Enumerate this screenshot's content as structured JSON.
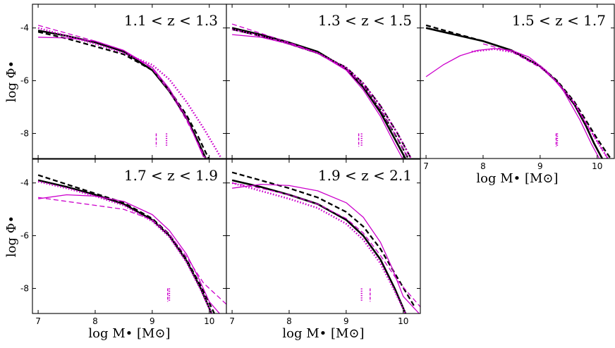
{
  "chart_data": {
    "type": "line",
    "axis": {
      "ylabel": "log Φ•",
      "xlabel": "log M• [M⊙]",
      "xlim": [
        6.9,
        10.3
      ],
      "ylim": [
        -8.95,
        -3.1
      ],
      "xticks": [
        7,
        8,
        9,
        10
      ],
      "yticks": [
        -4,
        -6,
        -8
      ]
    },
    "colors": {
      "black": "#000000",
      "magenta": "#cc00cc"
    },
    "panels": [
      {
        "id": "p1",
        "label": "1.1 < z < 1.3",
        "row": 0,
        "col": 0,
        "show_xlabel": false,
        "show_ylabel": true,
        "show_xticklabels": false,
        "show_yticklabels": true,
        "series": [
          {
            "color": "black",
            "style": "solid",
            "x": [
              7.0,
              7.5,
              8.0,
              8.5,
              9.0,
              9.3,
              9.6,
              9.8,
              9.95
            ],
            "y": [
              -4.1,
              -4.3,
              -4.55,
              -4.9,
              -5.6,
              -6.4,
              -7.4,
              -8.3,
              -9.0
            ]
          },
          {
            "color": "black",
            "style": "dashed",
            "x": [
              7.0,
              7.5,
              8.0,
              8.5,
              9.0,
              9.3,
              9.6,
              9.8,
              10.0
            ],
            "y": [
              -4.15,
              -4.4,
              -4.7,
              -5.0,
              -5.6,
              -6.35,
              -7.3,
              -8.1,
              -9.0
            ]
          },
          {
            "color": "magenta",
            "style": "solid",
            "x": [
              7.0,
              7.5,
              8.0,
              8.5,
              9.0,
              9.3,
              9.6,
              9.9
            ],
            "y": [
              -4.35,
              -4.38,
              -4.5,
              -4.85,
              -5.5,
              -6.3,
              -7.4,
              -8.9
            ]
          },
          {
            "color": "magenta",
            "style": "dashed",
            "x": [
              7.0,
              7.5,
              8.0,
              8.5,
              9.0,
              9.3,
              9.6,
              9.95
            ],
            "y": [
              -3.9,
              -4.2,
              -4.5,
              -4.85,
              -5.55,
              -6.4,
              -7.5,
              -9.0
            ]
          },
          {
            "color": "magenta",
            "style": "dotted",
            "x": [
              7.0,
              7.5,
              8.0,
              8.5,
              9.0,
              9.3,
              9.6,
              9.9,
              10.2
            ],
            "y": [
              -4.0,
              -4.3,
              -4.6,
              -4.95,
              -5.4,
              -5.95,
              -6.8,
              -7.8,
              -8.9
            ]
          }
        ],
        "markers": [
          {
            "x": 9.07,
            "style": "dashed",
            "color": "magenta"
          },
          {
            "x": 9.25,
            "style": "dotted",
            "color": "magenta"
          }
        ]
      },
      {
        "id": "p2",
        "label": "1.3 < z < 1.5",
        "row": 0,
        "col": 1,
        "show_xlabel": false,
        "show_ylabel": false,
        "show_xticklabels": false,
        "show_yticklabels": false,
        "series": [
          {
            "color": "black",
            "style": "solid",
            "x": [
              7.0,
              7.5,
              8.0,
              8.5,
              9.0,
              9.3,
              9.6,
              9.85,
              10.05
            ],
            "y": [
              -4.0,
              -4.25,
              -4.55,
              -4.9,
              -5.55,
              -6.25,
              -7.2,
              -8.2,
              -9.0
            ]
          },
          {
            "color": "black",
            "style": "dashed",
            "x": [
              7.0,
              7.5,
              8.0,
              8.5,
              9.0,
              9.3,
              9.6,
              9.9,
              10.1
            ],
            "y": [
              -4.05,
              -4.3,
              -4.6,
              -4.95,
              -5.55,
              -6.2,
              -7.1,
              -8.2,
              -9.0
            ]
          },
          {
            "color": "black",
            "style": "dashdot",
            "x": [
              7.0,
              7.5,
              8.0,
              8.5,
              9.0,
              9.3,
              9.6,
              9.9,
              10.15
            ],
            "y": [
              -4.05,
              -4.3,
              -4.6,
              -4.95,
              -5.5,
              -6.1,
              -6.95,
              -8.0,
              -9.0
            ]
          },
          {
            "color": "magenta",
            "style": "solid",
            "x": [
              7.0,
              7.5,
              8.0,
              8.5,
              9.0,
              9.3,
              9.6,
              9.85,
              10.0
            ],
            "y": [
              -4.25,
              -4.35,
              -4.6,
              -4.95,
              -5.6,
              -6.35,
              -7.35,
              -8.4,
              -9.0
            ]
          },
          {
            "color": "magenta",
            "style": "dashed",
            "x": [
              7.0,
              7.5,
              8.0,
              8.5,
              9.0,
              9.3,
              9.6,
              9.9,
              10.1
            ],
            "y": [
              -3.85,
              -4.2,
              -4.55,
              -4.95,
              -5.55,
              -6.2,
              -7.1,
              -8.2,
              -9.0
            ]
          },
          {
            "color": "magenta",
            "style": "dotted",
            "x": [
              7.0,
              7.5,
              8.0,
              8.5,
              9.0,
              9.3,
              9.6,
              9.9,
              10.15
            ],
            "y": [
              -4.05,
              -4.3,
              -4.6,
              -4.95,
              -5.5,
              -6.1,
              -6.95,
              -8.0,
              -9.0
            ]
          }
        ],
        "markers": [
          {
            "x": 9.22,
            "style": "dashed",
            "color": "magenta"
          },
          {
            "x": 9.27,
            "style": "dotted",
            "color": "magenta"
          }
        ]
      },
      {
        "id": "p3",
        "label": "1.5 < z < 1.7",
        "row": 0,
        "col": 2,
        "show_xlabel": true,
        "show_ylabel": false,
        "show_xticklabels": true,
        "show_yticklabels": false,
        "series": [
          {
            "color": "black",
            "style": "solid",
            "x": [
              7.0,
              7.5,
              8.0,
              8.5,
              9.0,
              9.3,
              9.6,
              9.8,
              9.95,
              10.1
            ],
            "y": [
              -4.0,
              -4.25,
              -4.5,
              -4.85,
              -5.45,
              -6.05,
              -6.9,
              -7.7,
              -8.4,
              -9.0
            ]
          },
          {
            "color": "black",
            "style": "dashed",
            "x": [
              7.0,
              7.5,
              8.0,
              8.5,
              9.0,
              9.3,
              9.6,
              9.8,
              10.0,
              10.25
            ],
            "y": [
              -3.9,
              -4.2,
              -4.5,
              -4.85,
              -5.45,
              -6.0,
              -6.8,
              -7.5,
              -8.2,
              -9.0
            ]
          },
          {
            "color": "magenta",
            "style": "solid",
            "x": [
              7.0,
              7.3,
              7.6,
              7.9,
              8.2,
              8.5,
              8.8,
              9.1,
              9.4,
              9.7,
              9.9,
              10.05
            ],
            "y": [
              -5.85,
              -5.4,
              -5.05,
              -4.85,
              -4.78,
              -4.85,
              -5.1,
              -5.6,
              -6.35,
              -7.5,
              -8.4,
              -9.0
            ]
          },
          {
            "color": "magenta",
            "style": "dashed",
            "x": [
              8.0,
              8.5,
              9.0,
              9.3,
              9.6,
              9.8,
              10.0,
              10.2
            ],
            "y": [
              -4.6,
              -4.9,
              -5.5,
              -6.05,
              -6.85,
              -7.6,
              -8.3,
              -9.0
            ]
          },
          {
            "color": "magenta",
            "style": "dotted",
            "x": [
              7.8,
              8.2,
              8.6,
              9.0,
              9.3,
              9.6,
              9.8,
              10.0,
              10.2
            ],
            "y": [
              -4.9,
              -4.8,
              -4.95,
              -5.45,
              -6.05,
              -6.85,
              -7.6,
              -8.3,
              -9.0
            ]
          }
        ],
        "markers": [
          {
            "x": 9.28,
            "style": "dashed",
            "color": "magenta"
          },
          {
            "x": 9.3,
            "style": "dotted",
            "color": "magenta"
          }
        ]
      },
      {
        "id": "p4",
        "label": "1.7 < z < 1.9",
        "row": 1,
        "col": 0,
        "show_xlabel": true,
        "show_ylabel": true,
        "show_xticklabels": true,
        "show_yticklabels": true,
        "series": [
          {
            "color": "black",
            "style": "solid",
            "x": [
              7.0,
              7.5,
              8.0,
              8.5,
              9.0,
              9.3,
              9.6,
              9.85,
              10.05
            ],
            "y": [
              -3.9,
              -4.15,
              -4.45,
              -4.8,
              -5.4,
              -6.0,
              -6.95,
              -8.0,
              -9.0
            ]
          },
          {
            "color": "black",
            "style": "dashed",
            "x": [
              7.0,
              7.5,
              8.0,
              8.5,
              9.0,
              9.3,
              9.6,
              9.9,
              10.1
            ],
            "y": [
              -3.7,
              -4.05,
              -4.4,
              -4.75,
              -5.35,
              -5.95,
              -6.9,
              -8.1,
              -9.0
            ]
          },
          {
            "color": "magenta",
            "style": "solid",
            "x": [
              7.0,
              7.5,
              8.0,
              8.5,
              9.0,
              9.3,
              9.6,
              9.8,
              10.0,
              10.2
            ],
            "y": [
              -4.6,
              -4.45,
              -4.5,
              -4.7,
              -5.2,
              -5.8,
              -6.7,
              -7.55,
              -8.5,
              -9.0
            ]
          },
          {
            "color": "magenta",
            "style": "dashed",
            "x": [
              7.0,
              7.5,
              8.0,
              8.5,
              9.0,
              9.3,
              9.6,
              9.9,
              10.3
            ],
            "y": [
              -4.55,
              -4.7,
              -4.85,
              -5.0,
              -5.4,
              -5.95,
              -6.8,
              -7.8,
              -8.6
            ]
          },
          {
            "color": "magenta",
            "style": "dotted",
            "x": [
              7.0,
              7.5,
              8.0,
              8.5,
              9.0,
              9.3,
              9.6,
              9.85,
              10.05
            ],
            "y": [
              -3.95,
              -4.2,
              -4.5,
              -4.85,
              -5.45,
              -6.05,
              -7.0,
              -8.05,
              -9.0
            ]
          }
        ],
        "markers": [
          {
            "x": 9.27,
            "style": "dashed",
            "color": "magenta"
          },
          {
            "x": 9.3,
            "style": "dotted",
            "color": "magenta"
          }
        ]
      },
      {
        "id": "p5",
        "label": "1.9 < z < 2.1",
        "row": 1,
        "col": 1,
        "show_xlabel": true,
        "show_ylabel": false,
        "show_xticklabels": true,
        "show_yticklabels": false,
        "series": [
          {
            "color": "black",
            "style": "solid",
            "x": [
              7.0,
              7.5,
              8.0,
              8.5,
              9.0,
              9.3,
              9.6,
              9.85,
              10.05
            ],
            "y": [
              -3.9,
              -4.15,
              -4.45,
              -4.8,
              -5.4,
              -6.0,
              -6.9,
              -8.0,
              -9.0
            ]
          },
          {
            "color": "black",
            "style": "dashed",
            "x": [
              7.0,
              7.5,
              8.0,
              8.5,
              9.0,
              9.3,
              9.6,
              9.9,
              10.2
            ],
            "y": [
              -3.6,
              -3.9,
              -4.2,
              -4.55,
              -5.1,
              -5.65,
              -6.5,
              -7.6,
              -8.7
            ]
          },
          {
            "color": "magenta",
            "style": "solid",
            "x": [
              7.0,
              7.5,
              8.0,
              8.5,
              9.0,
              9.3,
              9.6,
              9.8,
              10.0,
              10.3
            ],
            "y": [
              -4.2,
              -4.05,
              -4.1,
              -4.3,
              -4.75,
              -5.3,
              -6.25,
              -7.2,
              -8.3,
              -9.0
            ]
          },
          {
            "color": "magenta",
            "style": "dashed",
            "x": [
              7.0,
              7.5,
              8.0,
              8.5,
              9.0,
              9.3,
              9.6,
              9.9,
              10.3
            ],
            "y": [
              -4.0,
              -4.2,
              -4.45,
              -4.8,
              -5.35,
              -5.9,
              -6.75,
              -7.7,
              -8.7
            ]
          },
          {
            "color": "magenta",
            "style": "dotted",
            "x": [
              7.0,
              7.5,
              8.0,
              8.5,
              9.0,
              9.3,
              9.6,
              9.85,
              10.05
            ],
            "y": [
              -4.0,
              -4.3,
              -4.6,
              -4.95,
              -5.55,
              -6.15,
              -7.05,
              -8.1,
              -9.0
            ]
          }
        ],
        "markers": [
          {
            "x": 9.27,
            "style": "dotted",
            "color": "magenta"
          },
          {
            "x": 9.42,
            "style": "dashed",
            "color": "magenta"
          }
        ]
      }
    ]
  }
}
